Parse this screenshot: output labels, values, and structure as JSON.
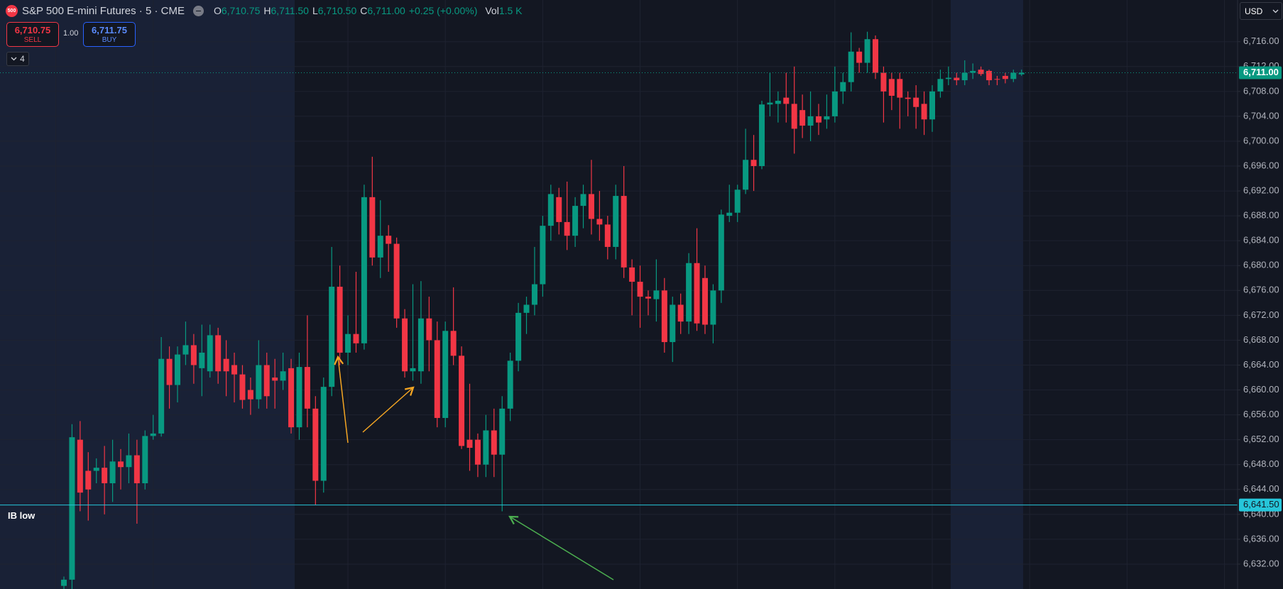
{
  "header": {
    "logo": "500",
    "symbol": "S&P 500 E-mini Futures · 5 · CME",
    "ohlc": [
      {
        "key": "O",
        "value": "6,710.75"
      },
      {
        "key": "H",
        "value": "6,711.50"
      },
      {
        "key": "L",
        "value": "6,710.50"
      },
      {
        "key": "C",
        "value": "6,711.00"
      }
    ],
    "change": "+0.25 (+0.00%)",
    "volume": {
      "key": "Vol",
      "value": "1.5 K"
    },
    "sell": {
      "price": "6,710.75",
      "label": "SELL"
    },
    "quantity": "1.00",
    "buy": {
      "price": "6,711.75",
      "label": "BUY"
    },
    "indicators_count": "4",
    "currency": "USD"
  },
  "chart_data": {
    "type": "candlestick",
    "up_color": "#089981",
    "down_color": "#f23645",
    "ylim": [
      6628,
      6722.7
    ],
    "yticks": [
      {
        "value": 6632,
        "label": "6,632.00"
      },
      {
        "value": 6636,
        "label": "6,636.00"
      },
      {
        "value": 6640,
        "label": "6,640.00"
      },
      {
        "value": 6644,
        "label": "6,644.00"
      },
      {
        "value": 6648,
        "label": "6,648.00"
      },
      {
        "value": 6652,
        "label": "6,652.00"
      },
      {
        "value": 6656,
        "label": "6,656.00"
      },
      {
        "value": 6660,
        "label": "6,660.00"
      },
      {
        "value": 6664,
        "label": "6,664.00"
      },
      {
        "value": 6668,
        "label": "6,668.00"
      },
      {
        "value": 6672,
        "label": "6,672.00"
      },
      {
        "value": 6676,
        "label": "6,676.00"
      },
      {
        "value": 6680,
        "label": "6,680.00"
      },
      {
        "value": 6684,
        "label": "6,684.00"
      },
      {
        "value": 6688,
        "label": "6,688.00"
      },
      {
        "value": 6692,
        "label": "6,692.00"
      },
      {
        "value": 6696,
        "label": "6,696.00"
      },
      {
        "value": 6700,
        "label": "6,700.00"
      },
      {
        "value": 6704,
        "label": "6,704.00"
      },
      {
        "value": 6708,
        "label": "6,708.00"
      },
      {
        "value": 6712,
        "label": "6,712.00"
      },
      {
        "value": 6716,
        "label": "6,716.00"
      }
    ],
    "grid": true,
    "open": [
      6628.5,
      6629.5,
      6652,
      6647,
      6647,
      6647.5,
      6645,
      6648.5,
      6647.6,
      6649.5,
      6645,
      6652.6,
      6653,
      6665,
      6660.8,
      6665.7,
      6667.2,
      6663.5,
      6663,
      6668.8,
      6665,
      6664,
      6662.5,
      6660,
      6658.5,
      6664,
      6662,
      6661.5,
      6663.5,
      6654,
      6663.7,
      6657,
      6645.4,
      6660.5,
      6676.6,
      6666,
      6669,
      6667.5,
      6691,
      6681.3,
      6684.8,
      6683.5,
      6671.5,
      6663,
      6663,
      6671.5,
      6668,
      6655.5,
      6669.5,
      6665.5,
      6652,
      6652,
      6648,
      6653.5,
      6649.6,
      6657,
      6664.7,
      6672.4,
      6673.7,
      6677,
      6686.4,
      6691,
      6687,
      6684.8,
      6689.6,
      6691.5,
      6687.5,
      6686.6,
      6683,
      6691.2,
      6679.7,
      6677.4,
      6675,
      6674.6,
      6676,
      6667.7,
      6673.7,
      6671,
      6680.4,
      6678,
      6670.5,
      6676,
      6688,
      6688.5,
      6692.2,
      6697,
      6696,
      6705.9,
      6706,
      6707,
      6706,
      6705,
      6702.5,
      6704,
      6703.5,
      6704,
      6708,
      6709.5,
      6714.4,
      6712.6,
      6716.4,
      6711,
      6710,
      6710,
      6707,
      6707,
      6706,
      6703.5,
      6708,
      6710,
      6710.2,
      6709.8,
      6711,
      6711.5,
      6711.3,
      6710,
      6710.5,
      6710,
      6710.75
    ],
    "high": [
      6630,
      6654.5,
      6655,
      6650,
      6649,
      6651,
      6652,
      6650.5,
      6653,
      6652,
      6653.5,
      6656,
      6668.5,
      6667,
      6667,
      6671,
      6669,
      6670.5,
      6670.5,
      6670,
      6668,
      6666,
      6664,
      6662,
      6668,
      6666,
      6665,
      6666,
      6665,
      6666,
      6672,
      6659,
      6662,
      6683,
      6680,
      6672,
      6679,
      6693,
      6697.5,
      6690.5,
      6686.5,
      6684.5,
      6673,
      6677,
      6677.5,
      6675,
      6671,
      6671,
      6676.5,
      6667,
      6661,
      6653,
      6656,
      6657,
      6659,
      6666,
      6674,
      6675,
      6683,
      6688,
      6693,
      6692.5,
      6693.5,
      6691,
      6693,
      6697,
      6692,
      6688,
      6693,
      6696,
      6681,
      6680,
      6676,
      6681,
      6678,
      6675,
      6675.5,
      6682,
      6686,
      6680,
      6677,
      6689,
      6693,
      6693,
      6702,
      6701,
      6706.5,
      6711,
      6708,
      6711,
      6712,
      6707.5,
      6708,
      6706,
      6707.5,
      6712,
      6711,
      6717.5,
      6715,
      6717.6,
      6717,
      6712,
      6711,
      6711,
      6708,
      6709,
      6708,
      6709,
      6711.5,
      6712,
      6711,
      6713,
      6712.5,
      6712,
      6711.5,
      6710.5,
      6711,
      6711.5,
      6711.5
    ],
    "low": [
      6627,
      6628,
      6640.5,
      6639,
      6645,
      6640,
      6642,
      6644,
      6645,
      6638.5,
      6644,
      6652,
      6652.5,
      6657,
      6658,
      6664,
      6661,
      6659,
      6662,
      6661,
      6659,
      6658,
      6657,
      6656,
      6657,
      6657,
      6657,
      6660,
      6653,
      6652,
      6654,
      6641.5,
      6643.5,
      6659,
      6664,
      6664,
      6666,
      6666.5,
      6680,
      6678,
      6679,
      6670,
      6662,
      6661.5,
      6661,
      6663,
      6654,
      6654,
      6664,
      6650.5,
      6647,
      6646,
      6646,
      6646,
      6640.5,
      6655,
      6663,
      6669,
      6672,
      6675,
      6684,
      6685,
      6682.5,
      6683,
      6686,
      6685,
      6684,
      6681,
      6681,
      6678,
      6672,
      6670,
      6672,
      6671,
      6666,
      6664.5,
      6669,
      6669,
      6669.5,
      6669,
      6667.5,
      6674,
      6687,
      6687,
      6691.5,
      6692,
      6695.5,
      6704,
      6703,
      6703,
      6698,
      6700.5,
      6700,
      6701,
      6702,
      6703,
      6706,
      6708,
      6711,
      6711,
      6710,
      6703,
      6705,
      6702,
      6704,
      6702,
      6701,
      6701.5,
      6707,
      6709,
      6709,
      6709,
      6710,
      6710.5,
      6709,
      6709,
      6709.3,
      6709.5,
      6710.5
    ],
    "close": [
      6629.5,
      6652.4,
      6643.5,
      6644,
      6647.5,
      6645,
      6648.5,
      6647.6,
      6649.5,
      6645,
      6652.6,
      6653,
      6665,
      6660.8,
      6665.7,
      6667.2,
      6664,
      6666,
      6668.8,
      6663,
      6663,
      6662.5,
      6658.4,
      6658.5,
      6664,
      6659,
      6661.5,
      6663,
      6654,
      6663.7,
      6657,
      6645.4,
      6660.5,
      6676.6,
      6666,
      6669,
      6667.5,
      6691,
      6681.3,
      6684.8,
      6683.5,
      6671.5,
      6663,
      6663.5,
      6671.5,
      6668,
      6655.5,
      6669.5,
      6665.5,
      6651,
      6650.7,
      6648,
      6653.5,
      6649.6,
      6657,
      6664.7,
      6672.4,
      6673.7,
      6677,
      6686.4,
      6691.5,
      6687,
      6684.8,
      6689.6,
      6691.5,
      6687.5,
      6686.6,
      6683,
      6691.2,
      6679.7,
      6677.4,
      6675,
      6674.7,
      6676,
      6667.7,
      6673.7,
      6671,
      6680.4,
      6670.7,
      6670.5,
      6676,
      6688.2,
      6688.5,
      6692.2,
      6697,
      6696,
      6705.9,
      6706.2,
      6706.5,
      6706,
      6702,
      6702.5,
      6704,
      6703,
      6704,
      6708,
      6709.5,
      6714.4,
      6712.6,
      6716.4,
      6711,
      6708,
      6707.3,
      6707,
      6706.8,
      6705.5,
      6703.5,
      6708,
      6710,
      6710.2,
      6709.8,
      6711,
      6711.3,
      6710.8,
      6709.8,
      6709.9,
      6710,
      6711,
      6711
    ],
    "current_price": {
      "value": 6711,
      "label": "6,711.00",
      "color": "#089981"
    },
    "level": {
      "name": "IB low",
      "value": 6641.5,
      "label": "6,641.50",
      "color": "#26c6da"
    }
  }
}
